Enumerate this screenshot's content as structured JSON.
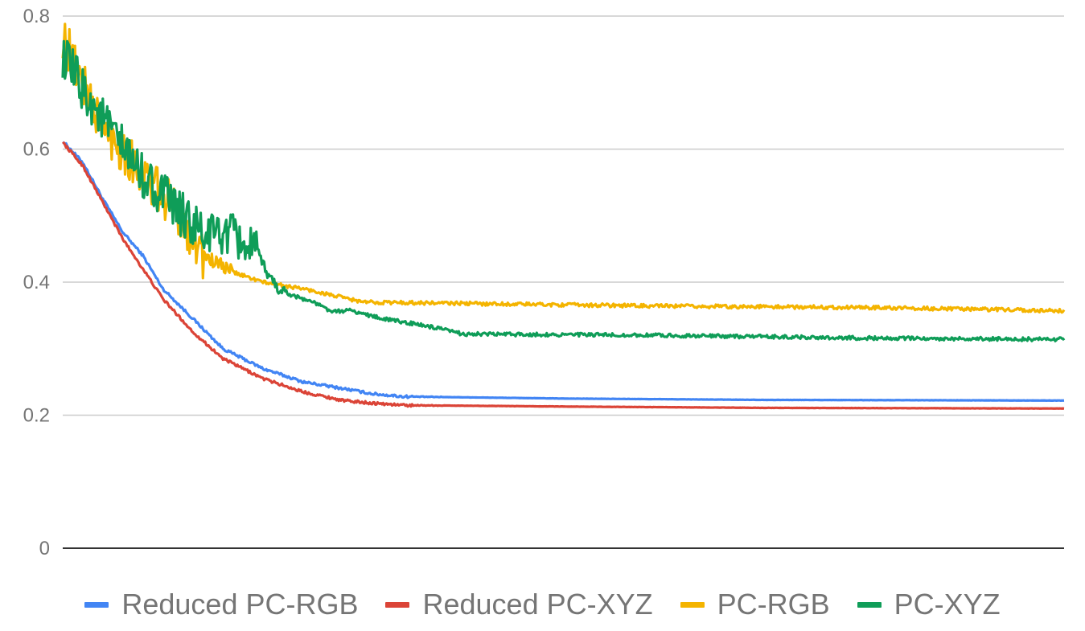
{
  "chart_data": {
    "type": "line",
    "title": "",
    "xlabel": "",
    "ylabel": "",
    "ylim": [
      0,
      0.8
    ],
    "yticks": [
      "0",
      "0.2",
      "0.4",
      "0.6",
      "0.8"
    ],
    "xlim": [
      0,
      100
    ],
    "grid": true,
    "legend_position": "bottom",
    "series": [
      {
        "name": "Reduced PC-RGB",
        "color": "#4285f4",
        "noise": 0.002,
        "points": [
          [
            0,
            0.612
          ],
          [
            2,
            0.58
          ],
          [
            4,
            0.525
          ],
          [
            6,
            0.475
          ],
          [
            8,
            0.44
          ],
          [
            10,
            0.39
          ],
          [
            13,
            0.345
          ],
          [
            16,
            0.3
          ],
          [
            20,
            0.27
          ],
          [
            24,
            0.25
          ],
          [
            28,
            0.24
          ],
          [
            31,
            0.232
          ],
          [
            34,
            0.228
          ],
          [
            50,
            0.225
          ],
          [
            70,
            0.223
          ],
          [
            100,
            0.222
          ]
        ]
      },
      {
        "name": "Reduced PC-XYZ",
        "color": "#db4437",
        "noise": 0.002,
        "points": [
          [
            0,
            0.61
          ],
          [
            2,
            0.575
          ],
          [
            4,
            0.52
          ],
          [
            6,
            0.465
          ],
          [
            8,
            0.42
          ],
          [
            10,
            0.375
          ],
          [
            13,
            0.325
          ],
          [
            16,
            0.285
          ],
          [
            20,
            0.255
          ],
          [
            24,
            0.235
          ],
          [
            28,
            0.222
          ],
          [
            31,
            0.218
          ],
          [
            34,
            0.215
          ],
          [
            50,
            0.213
          ],
          [
            70,
            0.211
          ],
          [
            100,
            0.21
          ]
        ]
      },
      {
        "name": "PC-RGB",
        "color": "#f4b400",
        "noise": 0.035,
        "noise_until": 14,
        "points": [
          [
            0,
            0.77
          ],
          [
            2,
            0.7
          ],
          [
            4,
            0.63
          ],
          [
            6,
            0.6
          ],
          [
            8,
            0.56
          ],
          [
            10,
            0.53
          ],
          [
            12,
            0.495
          ],
          [
            14,
            0.44
          ],
          [
            17,
            0.415
          ],
          [
            20,
            0.4
          ],
          [
            24,
            0.39
          ],
          [
            27,
            0.38
          ],
          [
            30,
            0.37
          ],
          [
            40,
            0.368
          ],
          [
            60,
            0.364
          ],
          [
            80,
            0.362
          ],
          [
            100,
            0.357
          ]
        ]
      },
      {
        "name": "PC-XYZ",
        "color": "#0f9d58",
        "noise": 0.035,
        "noise_until": 19.5,
        "points": [
          [
            0,
            0.74
          ],
          [
            2,
            0.69
          ],
          [
            4,
            0.645
          ],
          [
            6,
            0.6
          ],
          [
            8,
            0.56
          ],
          [
            10,
            0.53
          ],
          [
            12,
            0.5
          ],
          [
            14,
            0.47
          ],
          [
            16,
            0.475
          ],
          [
            18,
            0.46
          ],
          [
            19.5,
            0.44
          ],
          [
            21,
            0.4
          ],
          [
            22,
            0.385
          ],
          [
            25,
            0.37
          ],
          [
            27,
            0.355
          ],
          [
            28.5,
            0.358
          ],
          [
            32,
            0.345
          ],
          [
            36,
            0.335
          ],
          [
            40,
            0.322
          ],
          [
            60,
            0.32
          ],
          [
            80,
            0.316
          ],
          [
            100,
            0.314
          ]
        ]
      }
    ]
  }
}
